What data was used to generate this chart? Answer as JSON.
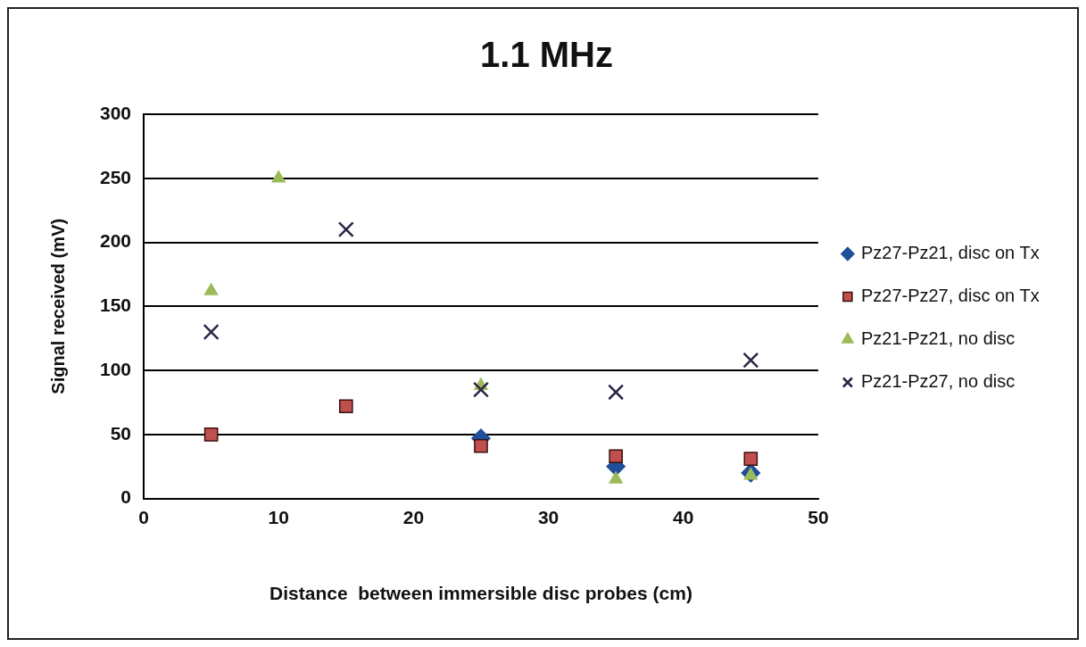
{
  "chart_data": {
    "type": "scatter",
    "title": "1.1 MHz",
    "xlabel": "Distance  between immersible disc probes (cm)",
    "ylabel": "Signal received (mV)",
    "xlim": [
      0,
      50
    ],
    "xticks": [
      0,
      10,
      20,
      30,
      40,
      50
    ],
    "ylim": [
      0,
      300
    ],
    "yticks": [
      0,
      50,
      100,
      150,
      200,
      250,
      300
    ],
    "grid": "y",
    "legend": "right",
    "series": [
      {
        "name": "Pz27-Pz21, disc on Tx",
        "color": "#1f4e9a",
        "marker": "diamond",
        "x": [
          25,
          35,
          45
        ],
        "values": [
          47,
          25,
          20
        ]
      },
      {
        "name": "Pz27-Pz27, disc on Tx",
        "color": "#c0504d",
        "marker": "square",
        "x": [
          5,
          15,
          25,
          35,
          45
        ],
        "values": [
          50,
          72,
          41,
          33,
          31
        ]
      },
      {
        "name": "Pz21-Pz21, no disc",
        "color": "#9bbb59",
        "marker": "triangle",
        "x": [
          5,
          10,
          25,
          35,
          45
        ],
        "values": [
          162,
          250,
          88,
          15,
          18
        ]
      },
      {
        "name": "Pz21-Pz27, no disc",
        "color": "#2e2447",
        "marker": "cross",
        "x": [
          5,
          15,
          25,
          35,
          45
        ],
        "values": [
          130,
          210,
          85,
          83,
          108
        ]
      }
    ]
  }
}
